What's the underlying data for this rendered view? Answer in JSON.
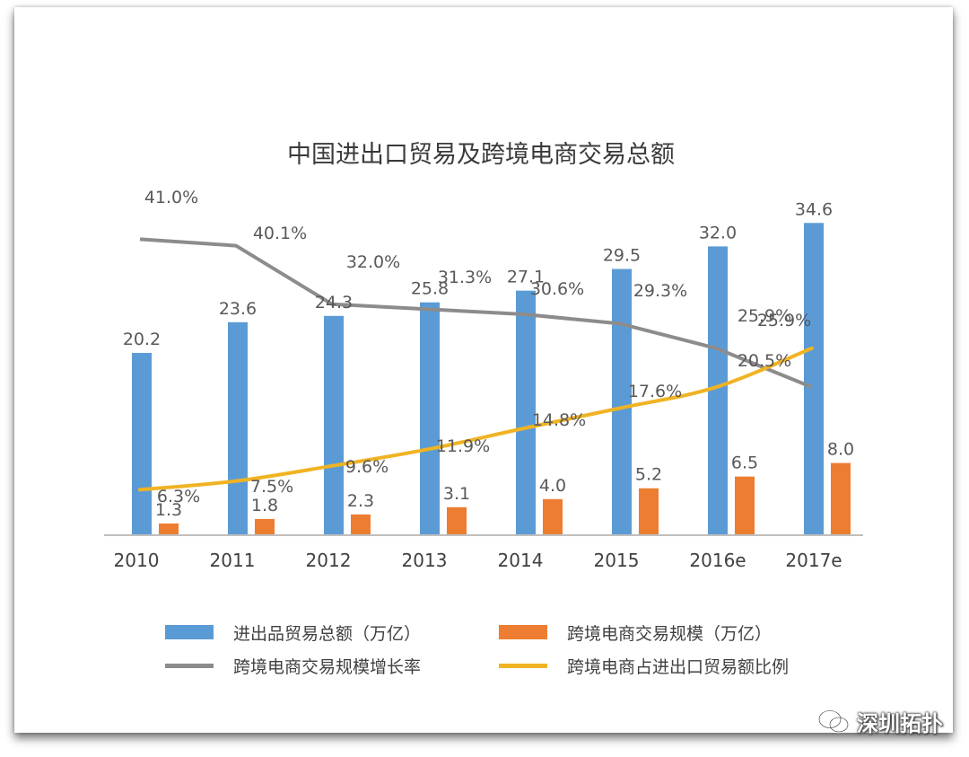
{
  "chart_data": {
    "type": "bar",
    "title": "中国进出口贸易及跨境电商交易总额",
    "categories": [
      "2010",
      "2011",
      "2012",
      "2013",
      "2014",
      "2015",
      "2016e",
      "2017e"
    ],
    "bar_ylim": [
      0,
      40
    ],
    "pct_ylim": [
      0,
      50
    ],
    "series": [
      {
        "name": "进出品贸易总额（万亿）",
        "kind": "bar",
        "color": "#5b9bd5",
        "values": [
          20.2,
          23.6,
          24.3,
          25.8,
          27.1,
          29.5,
          32.0,
          34.6
        ],
        "labels": [
          "20.2",
          "23.6",
          "24.3",
          "25.8",
          "27.1",
          "29.5",
          "32.0",
          "34.6"
        ]
      },
      {
        "name": "跨境电商交易规模（万亿）",
        "kind": "bar",
        "color": "#ed7d31",
        "values": [
          1.3,
          1.8,
          2.3,
          3.1,
          4.0,
          5.2,
          6.5,
          8.0
        ],
        "labels": [
          "1.3",
          "1.8",
          "2.3",
          "3.1",
          "4.0",
          "5.2",
          "6.5",
          "8.0"
        ]
      },
      {
        "name": "跨境电商交易规模增长率",
        "kind": "line",
        "color": "#8c8c8c",
        "values": [
          41.0,
          40.1,
          32.0,
          31.3,
          30.6,
          29.3,
          25.9,
          20.5
        ],
        "labels": [
          "41.0%",
          "40.1%",
          "32.0%",
          "31.3%",
          "30.6%",
          "29.3%",
          "25.9%",
          "20.5%"
        ]
      },
      {
        "name": "跨境电商占进出口贸易额比例",
        "kind": "line",
        "color": "#f0b323",
        "values": [
          6.3,
          7.5,
          9.6,
          11.9,
          14.8,
          17.6,
          20.5,
          25.9
        ],
        "labels": [
          "6.3%",
          "7.5%",
          "9.6%",
          "11.9%",
          "14.8%",
          "17.6%",
          "",
          "25.9%"
        ]
      }
    ]
  },
  "legend": [
    {
      "label": "进出品贸易总额（万亿）",
      "color": "#5b9bd5",
      "kind": "bar"
    },
    {
      "label": "跨境电商交易规模（万亿）",
      "color": "#ed7d31",
      "kind": "bar"
    },
    {
      "label": "跨境电商交易规模增长率",
      "color": "#8c8c8c",
      "kind": "line"
    },
    {
      "label": "跨境电商占进出口贸易额比例",
      "color": "#f0b323",
      "kind": "line"
    }
  ],
  "watermark": {
    "text": "深圳拓扑",
    "icon": "wechat-icon"
  }
}
